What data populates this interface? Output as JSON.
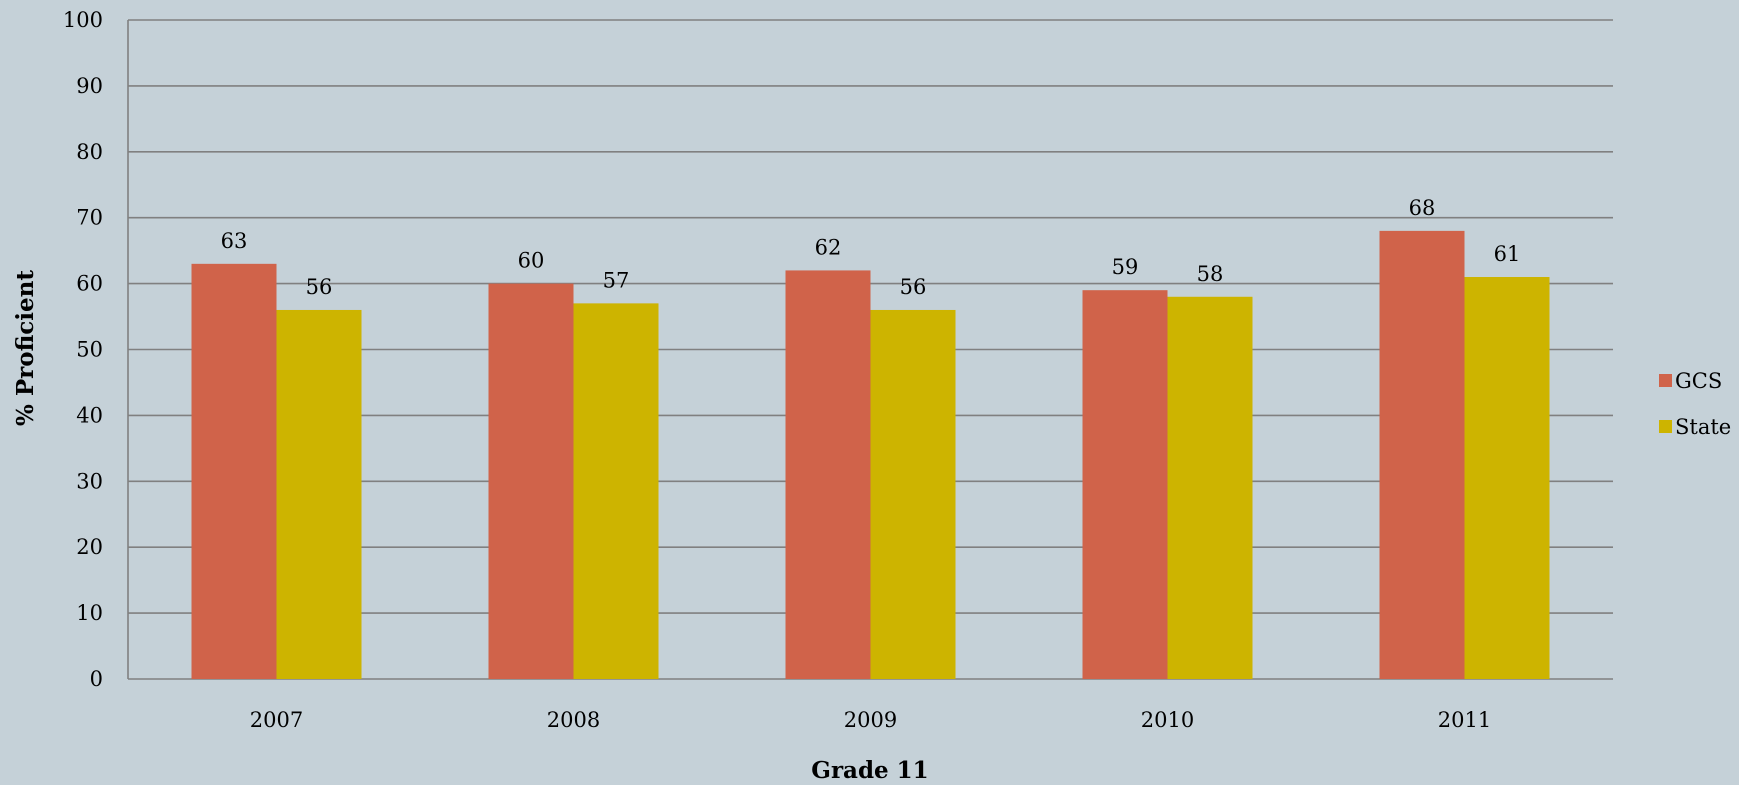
{
  "chart_data": {
    "type": "bar",
    "categories": [
      "2007",
      "2008",
      "2009",
      "2010",
      "2011"
    ],
    "series": [
      {
        "name": "GCS",
        "values": [
          63,
          60,
          62,
          59,
          68
        ],
        "color": "#d0634a"
      },
      {
        "name": "State",
        "values": [
          56,
          57,
          56,
          58,
          61
        ],
        "color": "#cdb400"
      }
    ],
    "title": "",
    "xlabel": "Grade 11",
    "ylabel": "% Proficient",
    "ylim": [
      0,
      100
    ],
    "yticks": [
      0,
      10,
      20,
      30,
      40,
      50,
      60,
      70,
      80,
      90,
      100
    ],
    "grid": true,
    "data_labels": true,
    "legend": "right",
    "background": "#c5d1d8",
    "gridline_color": "#808080"
  }
}
